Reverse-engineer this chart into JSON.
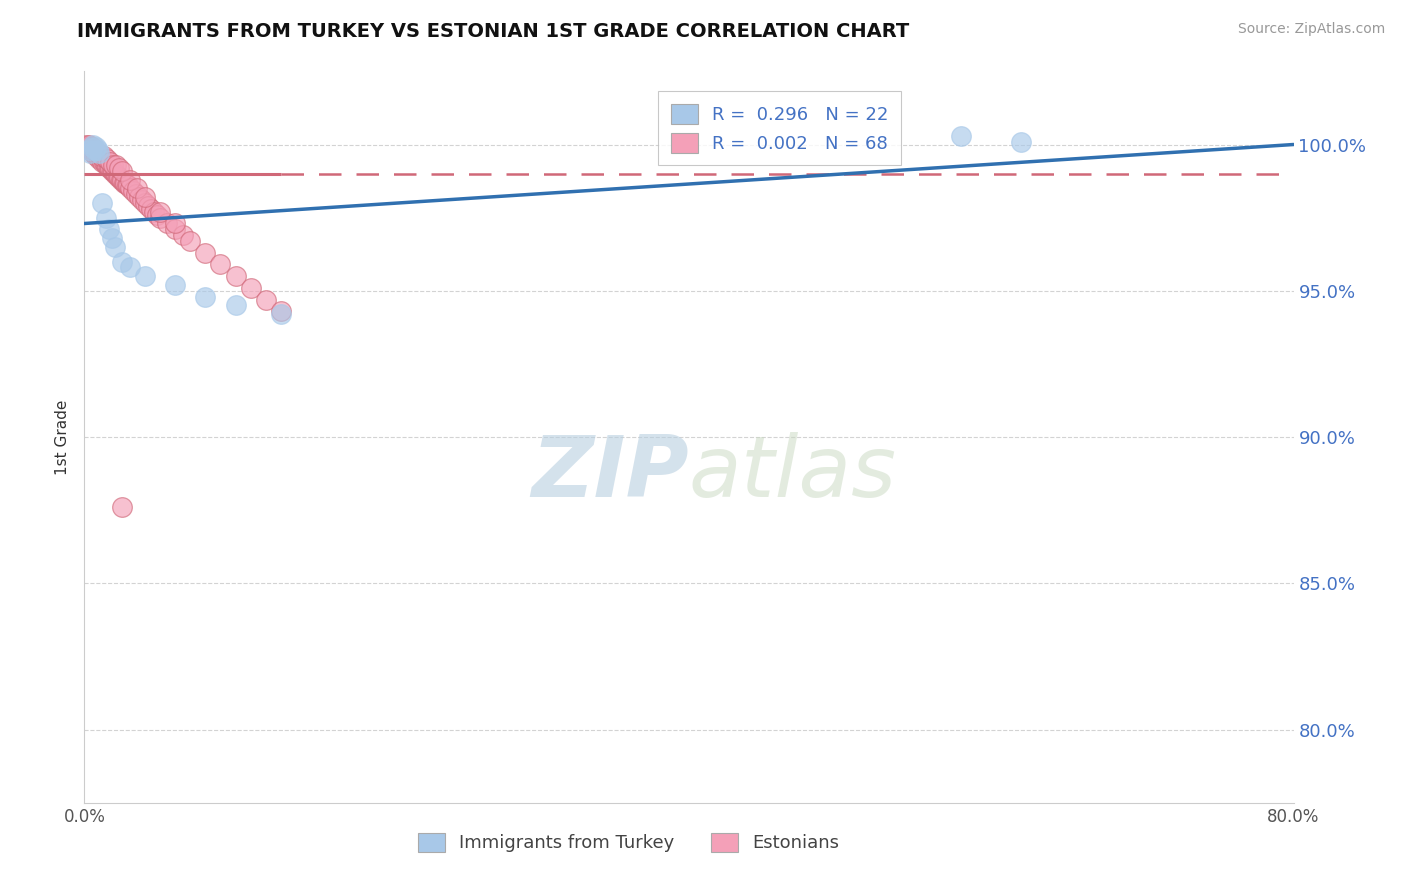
{
  "title": "IMMIGRANTS FROM TURKEY VS ESTONIAN 1ST GRADE CORRELATION CHART",
  "source": "Source: ZipAtlas.com",
  "ylabel": "1st Grade",
  "legend_label_blue": "Immigrants from Turkey",
  "legend_label_pink": "Estonians",
  "R_blue": 0.296,
  "N_blue": 22,
  "R_pink": 0.002,
  "N_pink": 68,
  "xlim": [
    0.0,
    0.8
  ],
  "ylim": [
    0.775,
    1.025
  ],
  "yticks": [
    0.8,
    0.85,
    0.9,
    0.95,
    1.0
  ],
  "ytick_labels": [
    "80.0%",
    "85.0%",
    "90.0%",
    "95.0%",
    "100.0%"
  ],
  "xticks": [
    0.0,
    0.1,
    0.2,
    0.3,
    0.4,
    0.5,
    0.6,
    0.7,
    0.8
  ],
  "xtick_labels": [
    "0.0%",
    "",
    "",
    "",
    "",
    "",
    "",
    "",
    "80.0%"
  ],
  "color_blue": "#a8c8e8",
  "color_pink": "#f4a0b8",
  "color_trend_blue": "#3070b0",
  "color_trend_pink": "#d06878",
  "background": "#ffffff",
  "grid_color": "#c8c8c8",
  "watermark_zip": "ZIP",
  "watermark_atlas": "atlas",
  "blue_x": [
    0.003,
    0.004,
    0.005,
    0.006,
    0.007,
    0.008,
    0.009,
    0.01,
    0.012,
    0.014,
    0.016,
    0.018,
    0.02,
    0.025,
    0.03,
    0.04,
    0.06,
    0.08,
    0.1,
    0.13,
    0.58,
    0.62
  ],
  "blue_y": [
    0.998,
    0.997,
    0.999,
    1.0,
    0.998,
    0.999,
    0.998,
    0.997,
    0.98,
    0.975,
    0.971,
    0.968,
    0.965,
    0.96,
    0.958,
    0.955,
    0.952,
    0.948,
    0.945,
    0.942,
    1.003,
    1.001
  ],
  "pink_x": [
    0.001,
    0.002,
    0.003,
    0.004,
    0.005,
    0.006,
    0.007,
    0.008,
    0.009,
    0.01,
    0.011,
    0.012,
    0.013,
    0.014,
    0.015,
    0.016,
    0.017,
    0.018,
    0.019,
    0.02,
    0.021,
    0.022,
    0.023,
    0.024,
    0.025,
    0.026,
    0.027,
    0.028,
    0.029,
    0.03,
    0.032,
    0.034,
    0.036,
    0.038,
    0.04,
    0.042,
    0.044,
    0.046,
    0.048,
    0.05,
    0.055,
    0.06,
    0.065,
    0.07,
    0.08,
    0.09,
    0.1,
    0.11,
    0.12,
    0.13,
    0.003,
    0.005,
    0.007,
    0.009,
    0.011,
    0.013,
    0.015,
    0.017,
    0.019,
    0.021,
    0.023,
    0.025,
    0.03,
    0.035,
    0.04,
    0.05,
    0.06,
    0.025
  ],
  "pink_y": [
    1.0,
    0.999,
    0.999,
    0.998,
    0.998,
    0.997,
    0.997,
    0.996,
    0.996,
    0.995,
    0.995,
    0.994,
    0.994,
    0.993,
    0.993,
    0.992,
    0.992,
    0.991,
    0.991,
    0.99,
    0.99,
    0.989,
    0.989,
    0.988,
    0.988,
    0.987,
    0.987,
    0.986,
    0.986,
    0.985,
    0.984,
    0.983,
    0.982,
    0.981,
    0.98,
    0.979,
    0.978,
    0.977,
    0.976,
    0.975,
    0.973,
    0.971,
    0.969,
    0.967,
    0.963,
    0.959,
    0.955,
    0.951,
    0.947,
    0.943,
    1.0,
    0.999,
    0.998,
    0.997,
    0.996,
    0.996,
    0.995,
    0.994,
    0.993,
    0.993,
    0.992,
    0.991,
    0.988,
    0.985,
    0.982,
    0.977,
    0.973,
    0.876
  ]
}
